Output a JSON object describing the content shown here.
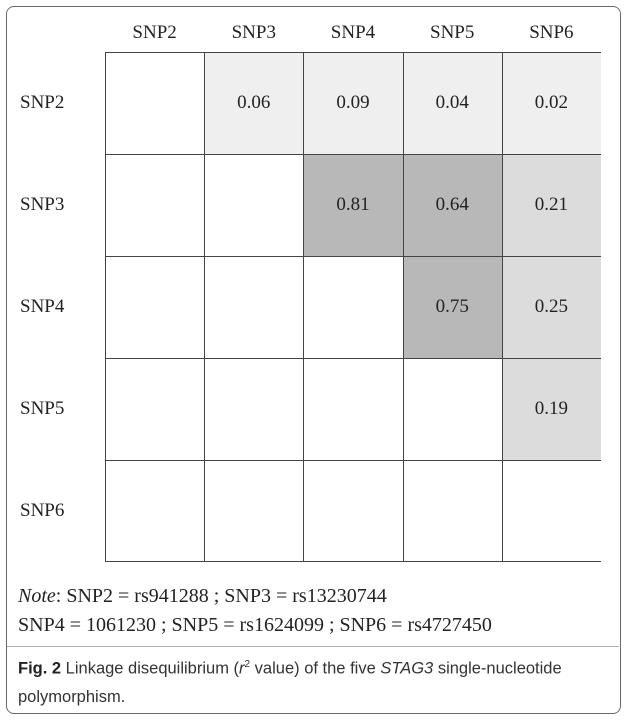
{
  "chart_data": {
    "type": "heatmap",
    "columns": [
      "SNP2",
      "SNP3",
      "SNP4",
      "SNP5",
      "SNP6"
    ],
    "rows": [
      "SNP2",
      "SNP3",
      "SNP4",
      "SNP5",
      "SNP6"
    ],
    "values": [
      [
        null,
        0.06,
        0.09,
        0.04,
        0.02
      ],
      [
        null,
        null,
        0.81,
        0.64,
        0.21
      ],
      [
        null,
        null,
        null,
        0.75,
        0.25
      ],
      [
        null,
        null,
        null,
        null,
        0.19
      ],
      [
        null,
        null,
        null,
        null,
        null
      ]
    ],
    "labels": [
      [
        "",
        "0.06",
        "0.09",
        "0.04",
        "0.02"
      ],
      [
        "",
        "",
        "0.81",
        "0.64",
        "0.21"
      ],
      [
        "",
        "",
        "",
        "0.75",
        "0.25"
      ],
      [
        "",
        "",
        "",
        "",
        "0.19"
      ],
      [
        "",
        "",
        "",
        "",
        ""
      ]
    ],
    "colors": {
      "low": "#efefef",
      "mid": "#dcdcdc",
      "high": "#b8b8b8",
      "empty": "#ffffff",
      "grid": "#444444"
    }
  },
  "note": {
    "label": "Note",
    "line1_rest": ": SNP2 = rs941288 ; SNP3 = rs13230744",
    "line2": "SNP4 = 1061230 ; SNP5 = rs1624099 ; SNP6 = rs4727450"
  },
  "caption": {
    "fig_label": "Fig. 2",
    "text_before_r": " Linkage disequilibrium (",
    "r_symbol": "r",
    "superscript": "2",
    "text_before_gene": " value) of the five ",
    "gene": "STAG3",
    "text_after_gene": " single-nucleotide polymorphism."
  }
}
